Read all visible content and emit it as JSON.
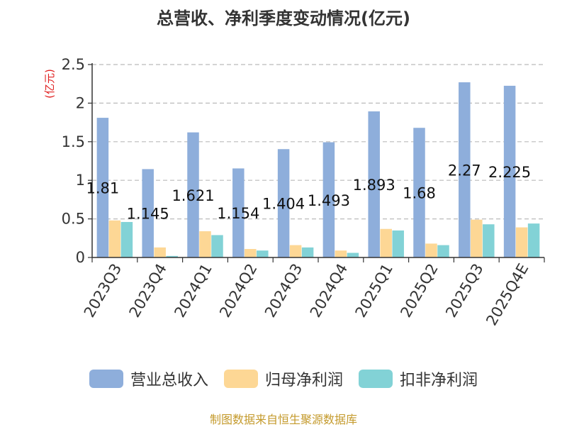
{
  "chart_data": {
    "type": "bar",
    "title": "总营收、净利季度变动情况(亿元)",
    "ylabel": "(亿元)",
    "xlabel": "",
    "ylim": [
      0,
      2.5
    ],
    "yticks": [
      0,
      0.5,
      1,
      1.5,
      2,
      2.5
    ],
    "ytick_labels": [
      "0",
      "0.5",
      "1",
      "1.5",
      "2",
      "2.5"
    ],
    "grid": true,
    "legend_position": "bottom",
    "categories": [
      "2023Q3",
      "2023Q4",
      "2024Q1",
      "2024Q2",
      "2024Q3",
      "2024Q4",
      "2025Q1",
      "2025Q2",
      "2025Q3",
      "2025Q4E"
    ],
    "series": [
      {
        "name": "营业总收入",
        "color": "#8eaedb",
        "values": [
          1.81,
          1.145,
          1.621,
          1.154,
          1.404,
          1.493,
          1.893,
          1.68,
          2.27,
          2.225
        ],
        "data_labels": [
          "1.81",
          "1.145",
          "1.621",
          "1.154",
          "1.404",
          "1.493",
          "1.893",
          "1.68",
          "2.27",
          "2.225"
        ]
      },
      {
        "name": "归母净利润",
        "color": "#fdd795",
        "values": [
          0.48,
          0.13,
          0.34,
          0.11,
          0.16,
          0.09,
          0.37,
          0.18,
          0.49,
          0.39
        ]
      },
      {
        "name": "扣非净利润",
        "color": "#82d2d6",
        "values": [
          0.46,
          0.02,
          0.29,
          0.09,
          0.13,
          0.06,
          0.35,
          0.16,
          0.43,
          0.44
        ]
      }
    ],
    "source": "制图数据来自恒生聚源数据库"
  },
  "colors": {
    "axis": "#333333",
    "grid": "#bbbbbb",
    "ylabel": "#e02020",
    "label": "#111111"
  }
}
